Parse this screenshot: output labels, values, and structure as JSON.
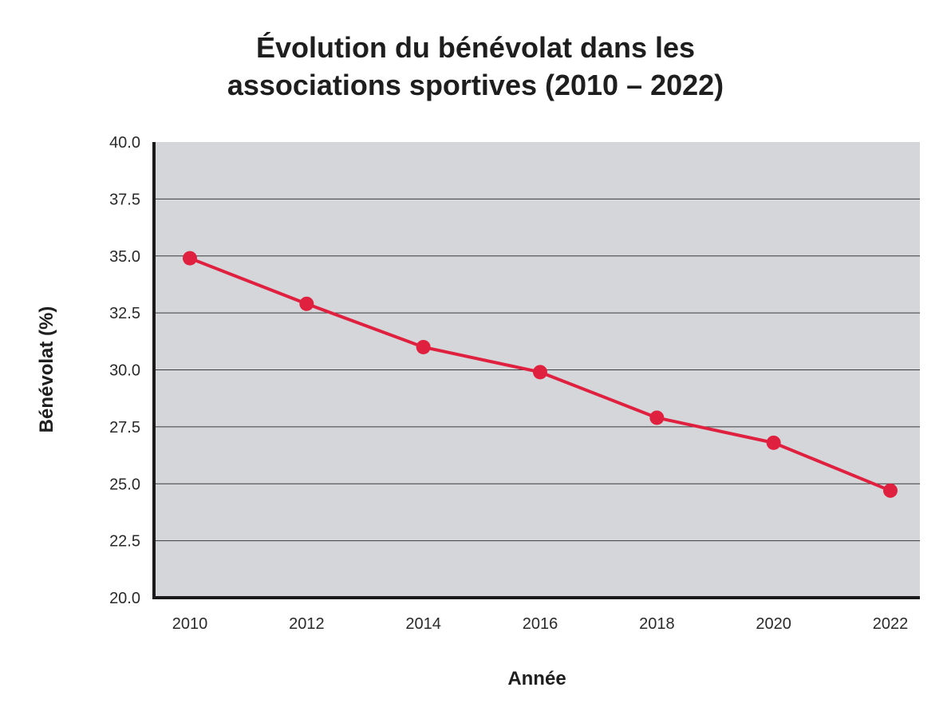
{
  "chart_data": {
    "type": "line",
    "title_lines": [
      "Évolution du bénévolat dans les",
      "associations sportives (2010 – 2022)"
    ],
    "xlabel": "Année",
    "ylabel": "Bénévolat (%)",
    "x": [
      "2010",
      "2012",
      "2014",
      "2016",
      "2018",
      "2020",
      "2022"
    ],
    "series": [
      {
        "values": [
          34.9,
          32.9,
          31.0,
          29.9,
          27.9,
          26.8,
          24.7
        ]
      }
    ],
    "ylim": [
      20.0,
      40.0
    ],
    "yticks": [
      "20.0",
      "22.5",
      "25.0",
      "27.5",
      "30.0",
      "32.5",
      "35.0",
      "37.5",
      "40.0"
    ],
    "grid": true,
    "colors": {
      "line": "#e0203f",
      "plot_background": "#d4d6da",
      "grid": "#3a3a3a",
      "axis": "#1a1a1a"
    }
  }
}
